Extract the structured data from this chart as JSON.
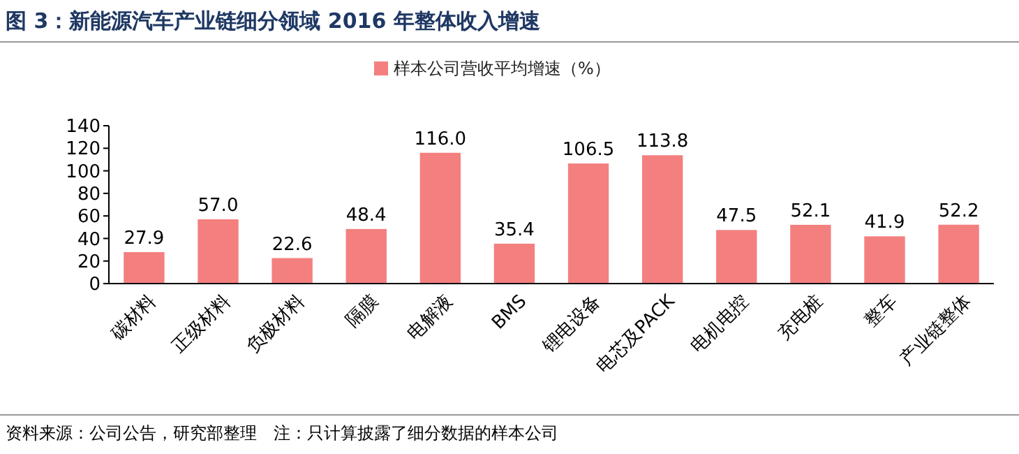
{
  "chart_data": {
    "type": "bar",
    "title": "图 3：新能源汽车产业链细分领域 2016 年整体收入增速",
    "categories": [
      "碳材料",
      "正级材料",
      "负极材料",
      "隔膜",
      "电解液",
      "BMS",
      "锂电设备",
      "电芯及PACK",
      "电机电控",
      "充电桩",
      "整车",
      "产业链整体"
    ],
    "series": [
      {
        "name": "样本公司营收平均增速（%）",
        "color": "#f47f7f",
        "values": [
          27.9,
          57.0,
          22.6,
          48.4,
          116.0,
          35.4,
          106.5,
          113.8,
          47.5,
          52.1,
          41.9,
          52.2
        ]
      }
    ],
    "value_labels": [
      "27.9",
      "57.0",
      "22.6",
      "48.4",
      "116.0",
      "35.4",
      "106.5",
      "113.8",
      "47.5",
      "52.1",
      "41.9",
      "52.2"
    ],
    "ylim": [
      0,
      140
    ],
    "yticks": [
      0,
      20,
      40,
      60,
      80,
      100,
      120,
      140
    ],
    "grid": false,
    "legend": "top",
    "annotations": [
      "资料来源：公司公告，研究部整理　注：只计算披露了细分数据的样本公司"
    ]
  }
}
